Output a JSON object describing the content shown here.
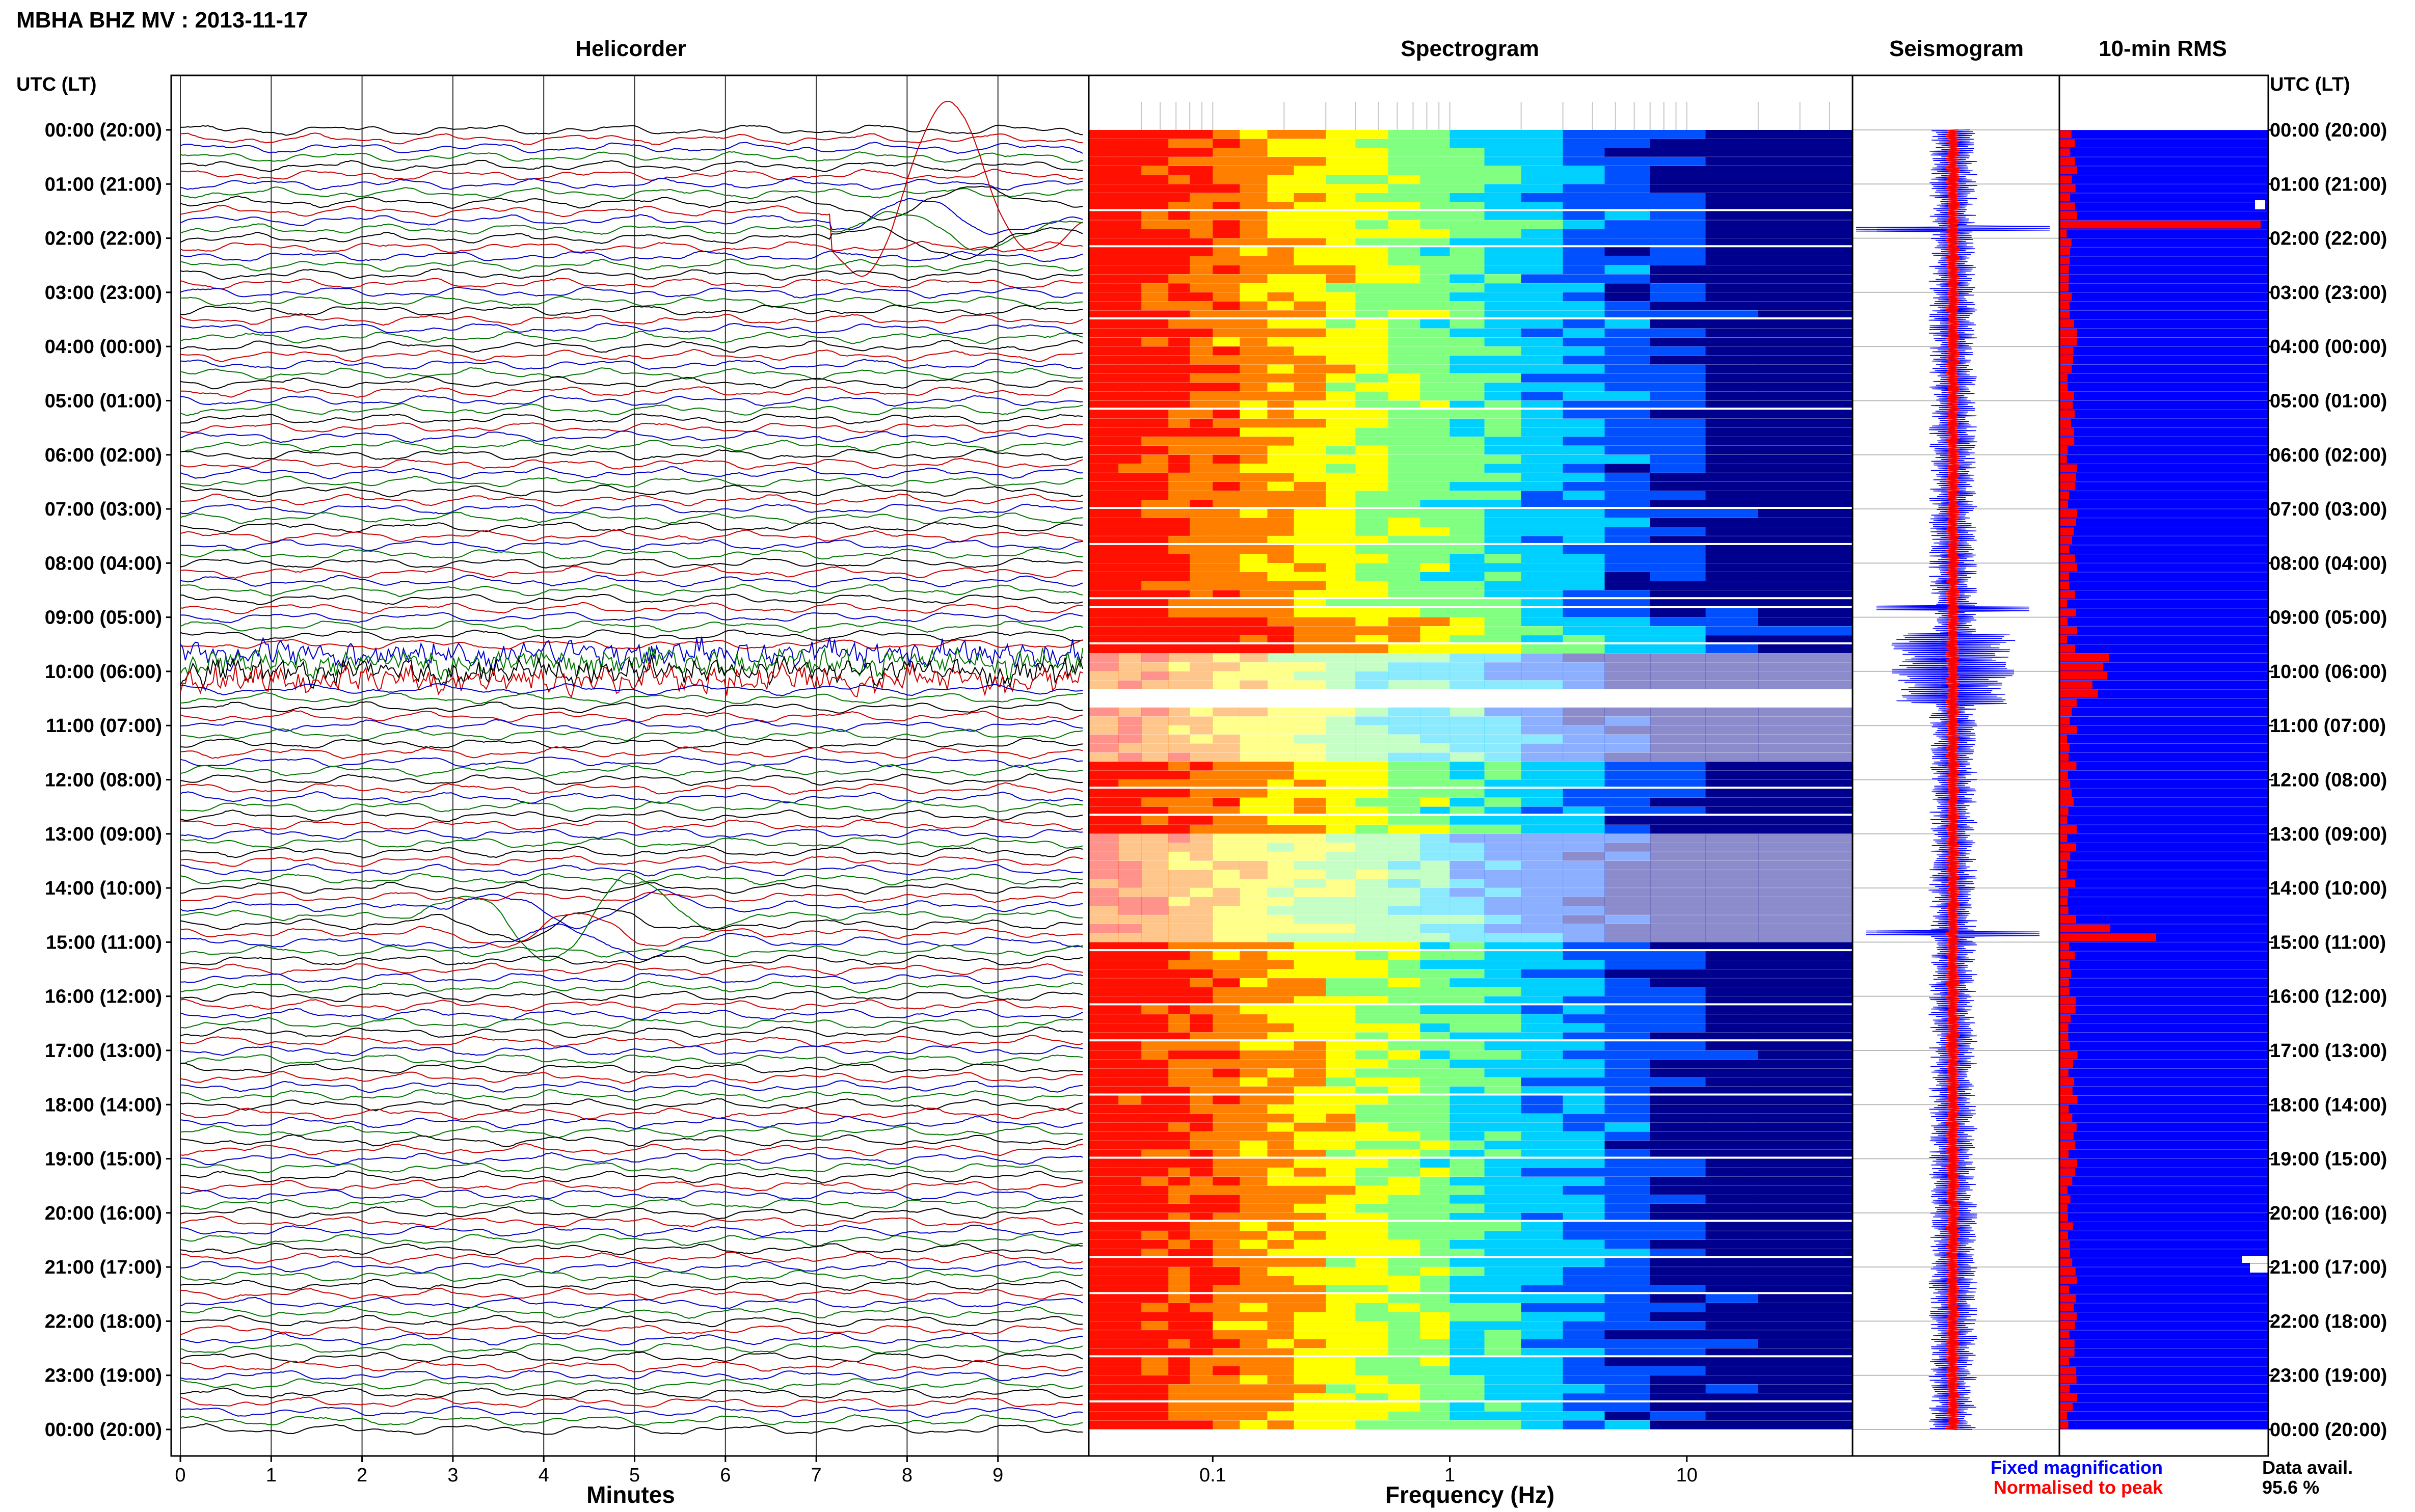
{
  "header": {
    "station_title": "MBHA BHZ MV : 2013-11-17",
    "utc_label_left": "UTC (LT)",
    "utc_label_right": "UTC (LT)"
  },
  "panels": {
    "helicorder": "Helicorder",
    "spectrogram": "Spectrogram",
    "seismogram": "Seismogram",
    "rms": "10-min RMS"
  },
  "time_labels": [
    "00:00 (20:00)",
    "01:00 (21:00)",
    "02:00 (22:00)",
    "03:00 (23:00)",
    "04:00 (00:00)",
    "05:00 (01:00)",
    "06:00 (02:00)",
    "07:00 (03:00)",
    "08:00 (04:00)",
    "09:00 (05:00)",
    "10:00 (06:00)",
    "11:00 (07:00)",
    "12:00 (08:00)",
    "13:00 (09:00)",
    "14:00 (10:00)",
    "15:00 (11:00)",
    "16:00 (12:00)",
    "17:00 (13:00)",
    "18:00 (14:00)",
    "19:00 (15:00)",
    "20:00 (16:00)",
    "21:00 (17:00)",
    "22:00 (18:00)",
    "23:00 (19:00)",
    "00:00 (20:00)"
  ],
  "helicorder_axis": {
    "xlabel": "Minutes",
    "ticks": [
      "0",
      "1",
      "2",
      "3",
      "4",
      "5",
      "6",
      "7",
      "8",
      "9"
    ],
    "xlim": [
      0,
      10
    ],
    "trace_colors": [
      "#000000",
      "#cc0000",
      "#0000cc",
      "#007700"
    ]
  },
  "spectrogram_axis": {
    "xlabel": "Frequency (Hz)",
    "ticks": [
      "0.1",
      "1",
      "10"
    ],
    "xlim": [
      0.03,
      50
    ],
    "scale": "log",
    "colormap": [
      "#00008f",
      "#0050ff",
      "#00d0ff",
      "#80ff80",
      "#ffff00",
      "#ff8000",
      "#ff1000"
    ]
  },
  "legend": {
    "fixed": "Fixed magnification",
    "normalised": "Normalised to peak",
    "fixed_color": "#0000ff",
    "normalised_color": "#ff0000",
    "availability_label": "Data avail.",
    "availability_value": "95.6 %"
  },
  "chart_data": [
    {
      "type": "line",
      "title": "Helicorder",
      "xlabel": "Minutes",
      "xlim": [
        0,
        10
      ],
      "rows_per_hour": 6,
      "events": [
        {
          "time_utc": "02:00",
          "minute": 8.2,
          "note": "large teleseismic wavetrain"
        },
        {
          "time_utc": "09:40",
          "minute": 0,
          "note": "elevated noise band"
        },
        {
          "time_utc": "14:30",
          "minute": 4.0,
          "note": "large wavetrain"
        }
      ]
    },
    {
      "type": "heatmap",
      "title": "Spectrogram",
      "xlabel": "Frequency (Hz)",
      "xscale": "log",
      "xlim": [
        0.03,
        50
      ],
      "ylim": [
        "00:00",
        "24:00"
      ]
    },
    {
      "type": "line",
      "title": "Seismogram",
      "series": [
        {
          "name": "Fixed magnification",
          "color": "#0000ff"
        },
        {
          "name": "Normalised to peak",
          "color": "#ff0000"
        }
      ],
      "spikes_utc": [
        "01:50",
        "08:50",
        "10:00",
        "14:50"
      ]
    },
    {
      "type": "bar",
      "title": "10-min RMS",
      "orientation": "horizontal",
      "bin_minutes": 10,
      "peaks_utc": [
        "01:40",
        "14:50"
      ],
      "data_availability_percent": 95.6
    }
  ]
}
